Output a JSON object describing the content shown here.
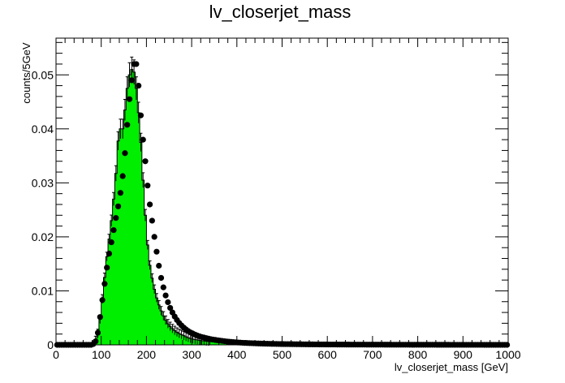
{
  "chart_data": {
    "type": "bar",
    "title": "lv_closerjet_mass",
    "xlabel": "lv_closerjet_mass [GeV]",
    "ylabel": "counts/5GeV",
    "xlim": [
      0,
      1000
    ],
    "ylim": [
      0,
      0.0568
    ],
    "bin_width": 5,
    "x_ticks": [
      0,
      100,
      200,
      300,
      400,
      500,
      600,
      700,
      800,
      900,
      1000
    ],
    "y_ticks": [
      0,
      0.01,
      0.02,
      0.03,
      0.04,
      0.05
    ],
    "y_tick_labels": [
      "0",
      "0.01",
      "0.02",
      "0.03",
      "0.04",
      "0.05"
    ],
    "grid": false,
    "legend": "none",
    "colors": {
      "histogram_fill": "#00ee00",
      "histogram_line": "#000000",
      "points": "#000000"
    },
    "series": [
      {
        "style": "filled-histogram-with-error-bars",
        "points": [
          [
            0,
            0
          ],
          [
            80,
            0
          ],
          [
            85,
            0.0004
          ],
          [
            90,
            0.0012
          ],
          [
            95,
            0.003
          ],
          [
            100,
            0.0065
          ],
          [
            105,
            0.0105
          ],
          [
            110,
            0.0145
          ],
          [
            115,
            0.0182
          ],
          [
            120,
            0.021
          ],
          [
            125,
            0.025
          ],
          [
            130,
            0.029
          ],
          [
            135,
            0.0345
          ],
          [
            140,
            0.041
          ],
          [
            145,
            0.039
          ],
          [
            150,
            0.041
          ],
          [
            155,
            0.046
          ],
          [
            160,
            0.049
          ],
          [
            165,
            0.051
          ],
          [
            170,
            0.051
          ],
          [
            175,
            0.05
          ],
          [
            180,
            0.045
          ],
          [
            185,
            0.041
          ],
          [
            190,
            0.034
          ],
          [
            195,
            0.027
          ],
          [
            200,
            0.021
          ],
          [
            205,
            0.016
          ],
          [
            210,
            0.0135
          ],
          [
            215,
            0.0112
          ],
          [
            220,
            0.0094
          ],
          [
            225,
            0.008
          ],
          [
            230,
            0.0068
          ],
          [
            235,
            0.0058
          ],
          [
            240,
            0.0049
          ],
          [
            245,
            0.0042
          ],
          [
            250,
            0.0036
          ],
          [
            260,
            0.0028
          ],
          [
            270,
            0.0022
          ],
          [
            280,
            0.0018
          ],
          [
            290,
            0.0014
          ],
          [
            300,
            0.0011
          ],
          [
            320,
            0.0008
          ],
          [
            340,
            0.0006
          ],
          [
            360,
            0.0004
          ],
          [
            400,
            0.00025
          ],
          [
            450,
            0.00015
          ],
          [
            500,
            0.0001
          ],
          [
            600,
            5e-05
          ],
          [
            700,
            2e-05
          ],
          [
            800,
            1e-05
          ],
          [
            1000,
            0
          ]
        ]
      },
      {
        "style": "markers",
        "points": [
          [
            0,
            0
          ],
          [
            80,
            0
          ],
          [
            85,
            0.0003
          ],
          [
            90,
            0.001
          ],
          [
            95,
            0.0035
          ],
          [
            100,
            0.0068
          ],
          [
            105,
            0.0098
          ],
          [
            110,
            0.0128
          ],
          [
            115,
            0.0158
          ],
          [
            120,
            0.018
          ],
          [
            125,
            0.02
          ],
          [
            130,
            0.0225
          ],
          [
            135,
            0.0245
          ],
          [
            140,
            0.0268
          ],
          [
            145,
            0.0295
          ],
          [
            150,
            0.033
          ],
          [
            155,
            0.038
          ],
          [
            160,
            0.0435
          ],
          [
            165,
            0.0475
          ],
          [
            170,
            0.0505
          ],
          [
            175,
            0.0535
          ],
          [
            180,
            0.0505
          ],
          [
            185,
            0.0455
          ],
          [
            190,
            0.0395
          ],
          [
            195,
            0.0365
          ],
          [
            200,
            0.0315
          ],
          [
            205,
            0.0275
          ],
          [
            210,
            0.0245
          ],
          [
            215,
            0.0215
          ],
          [
            220,
            0.0185
          ],
          [
            225,
            0.016
          ],
          [
            230,
            0.0133
          ],
          [
            235,
            0.0115
          ],
          [
            240,
            0.0098
          ],
          [
            245,
            0.0085
          ],
          [
            250,
            0.0073
          ],
          [
            255,
            0.0064
          ],
          [
            260,
            0.0056
          ],
          [
            265,
            0.0049
          ],
          [
            270,
            0.0043
          ],
          [
            275,
            0.0038
          ],
          [
            280,
            0.0034
          ],
          [
            285,
            0.003
          ],
          [
            290,
            0.0027
          ],
          [
            295,
            0.0024
          ],
          [
            300,
            0.0022
          ],
          [
            310,
            0.0018
          ],
          [
            320,
            0.0015
          ],
          [
            330,
            0.0013
          ],
          [
            340,
            0.0011
          ],
          [
            350,
            0.00095
          ],
          [
            360,
            0.00082
          ],
          [
            370,
            0.0007
          ],
          [
            380,
            0.0006
          ],
          [
            390,
            0.00052
          ],
          [
            400,
            0.00045
          ],
          [
            420,
            0.00035
          ],
          [
            440,
            0.00028
          ],
          [
            460,
            0.00022
          ],
          [
            480,
            0.00018
          ],
          [
            500,
            0.00015
          ],
          [
            550,
            0.0001
          ],
          [
            600,
            7e-05
          ],
          [
            650,
            5e-05
          ],
          [
            700,
            4e-05
          ],
          [
            800,
            2e-05
          ],
          [
            900,
            1e-05
          ],
          [
            1000,
            0
          ]
        ]
      }
    ]
  }
}
